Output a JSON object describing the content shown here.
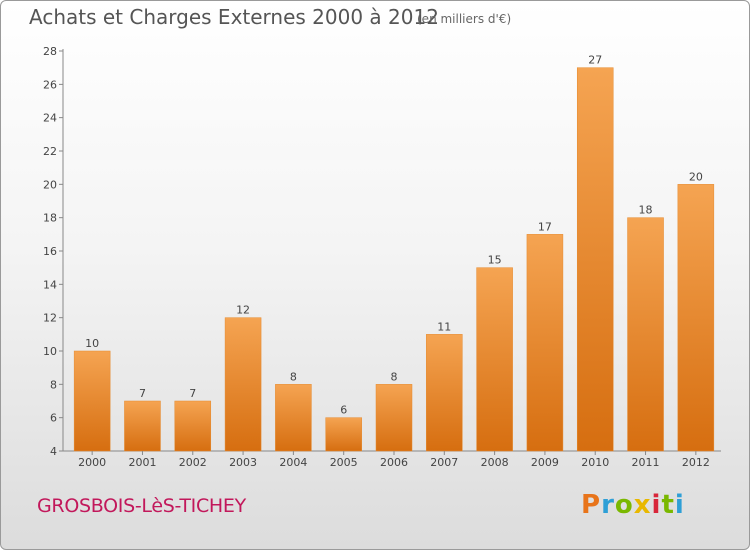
{
  "header": {
    "title": "Achats et Charges Externes 2000 à 2012",
    "unit": "(en milliers d'€)"
  },
  "footer": {
    "commune": "GROSBOIS-LèS-TICHEY",
    "logo_letters": [
      "P",
      "r",
      "o",
      "x",
      "i",
      "t",
      "i"
    ],
    "logo_colors": [
      "#e8741a",
      "#2e9fd6",
      "#7ab800",
      "#e8b800",
      "#d8263a",
      "#7ab800",
      "#2e9fd6"
    ]
  },
  "colors": {
    "bar": "#f0963a",
    "bar_dark": "#e07e1e",
    "commune": "#c2185b"
  },
  "chart_data": {
    "type": "bar",
    "categories": [
      "2000",
      "2001",
      "2002",
      "2003",
      "2004",
      "2005",
      "2006",
      "2007",
      "2008",
      "2009",
      "2010",
      "2011",
      "2012"
    ],
    "values": [
      10,
      7,
      7,
      12,
      8,
      6,
      8,
      11,
      15,
      17,
      27,
      18,
      20
    ],
    "title": "Achats et Charges Externes 2000 à 2012",
    "ylim": [
      4,
      28
    ],
    "yticks": [
      4,
      6,
      8,
      10,
      12,
      14,
      16,
      18,
      20,
      22,
      24,
      26,
      28
    ],
    "grid": false
  }
}
